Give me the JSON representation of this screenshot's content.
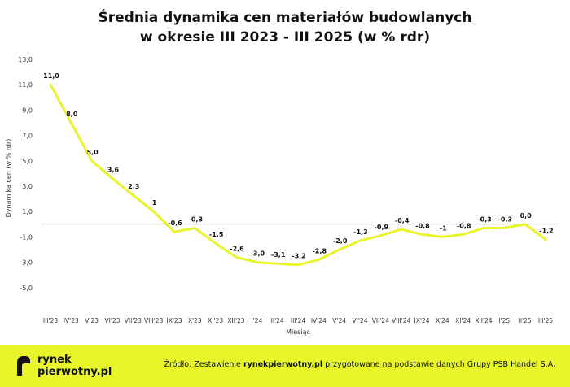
{
  "chart_data": {
    "type": "line",
    "title_line1": "Średnia dynamika cen materiałów budowlanych",
    "title_line2": "w okresie III 2023 - III 2025 (w % rdr)",
    "xlabel": "Miesiąc",
    "ylabel": "Dynamika cen (w % rdr)",
    "ylim": [
      -7,
      13
    ],
    "yticks": [
      13,
      11,
      9,
      7,
      5,
      3,
      1,
      -1,
      -3,
      -5
    ],
    "ytick_labels": [
      "13,0",
      "11,0",
      "9,0",
      "7,0",
      "5,0",
      "3,0",
      "1,0",
      "-1,0",
      "-3,0",
      "-5,0"
    ],
    "grid": false,
    "categories": [
      "III'23",
      "IV'23",
      "V'23",
      "VI'23",
      "VII'23",
      "VIII'23",
      "IX'23",
      "X'23",
      "XI'23",
      "XII'23",
      "I'24",
      "II'24",
      "III'24",
      "IV'24",
      "V'24",
      "VI'24",
      "VII'24",
      "VIII'24",
      "IX'24",
      "X'24",
      "XI'24",
      "XII'24",
      "I'25",
      "II'25",
      "III'25"
    ],
    "values": [
      11.0,
      8.0,
      5.0,
      3.6,
      2.3,
      1.0,
      -0.6,
      -0.3,
      -1.5,
      -2.6,
      -3.0,
      -3.1,
      -3.2,
      -2.8,
      -2.0,
      -1.3,
      -0.9,
      -0.4,
      -0.8,
      -1.0,
      -0.8,
      -0.3,
      -0.3,
      0.0,
      -1.2
    ],
    "data_labels": [
      "11,0",
      "8,0",
      "5,0",
      "3,6",
      "2,3",
      "1",
      "-0,6",
      "-0,3",
      "-1,5",
      "-2,6",
      "-3,0",
      "-3,1",
      "-3,2",
      "-2,8",
      "-2,0",
      "-1,3",
      "-0,9",
      "-0,4",
      "-0,8",
      "-1",
      "-0,8",
      "-0,3",
      "-0,3",
      "0,0",
      "-1,2"
    ],
    "line_color": "#e8f52a"
  },
  "footer": {
    "logo_line1": "rynek",
    "logo_line2": "pierwotny.pl",
    "source_prefix": "Źródło: Zestawienie ",
    "source_bold": "rynekpierwotny.pl",
    "source_suffix": " przygotowane na podstawie danych Grupy PSB Handel S.A.",
    "background": "#e8f52a"
  }
}
